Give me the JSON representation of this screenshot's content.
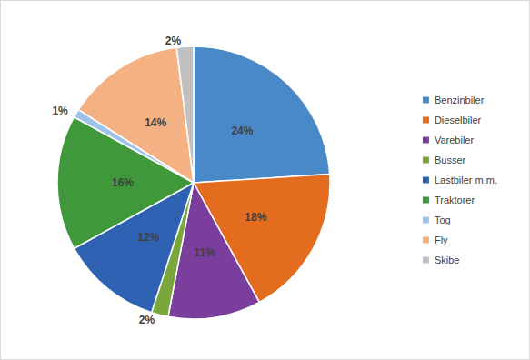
{
  "chart_data": {
    "type": "pie",
    "categories": [
      "Benzinbiler",
      "Dieselbiler",
      "Varebiler",
      "Busser",
      "Lastbiler m.m.",
      "Traktorer",
      "Tog",
      "Fly",
      "Skibe"
    ],
    "values": [
      24,
      18,
      11,
      2,
      12,
      16,
      1,
      14,
      2
    ],
    "value_labels": [
      "24%",
      "18%",
      "11%",
      "2%",
      "12%",
      "16%",
      "1%",
      "14%",
      "2%"
    ],
    "colors": [
      "#4a89c8",
      "#e46c1e",
      "#7a3e9d",
      "#7aa63c",
      "#2f62b3",
      "#3f993a",
      "#9dc3e6",
      "#f4b183",
      "#c0c0c0"
    ],
    "data_labels": true,
    "legend": "right"
  }
}
